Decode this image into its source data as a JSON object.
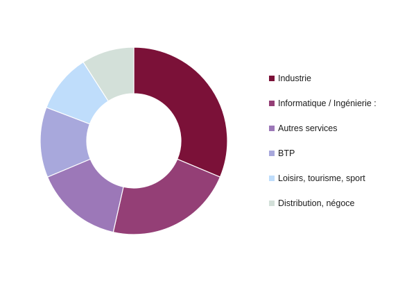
{
  "chart_data": {
    "type": "pie",
    "donut": true,
    "title": "",
    "legend_position": "right",
    "categories": [
      "Industrie",
      "Informatique / Ingénierie :",
      "Autres services",
      "BTP",
      "Loisirs, tourisme, sport",
      "Distribution, négoce"
    ],
    "values": [
      31,
      22,
      15,
      12,
      10,
      9
    ],
    "colors": [
      "#7B1138",
      "#943F76",
      "#9C78B8",
      "#A8A8DC",
      "#BFDDFB",
      "#D3E0D9"
    ]
  }
}
